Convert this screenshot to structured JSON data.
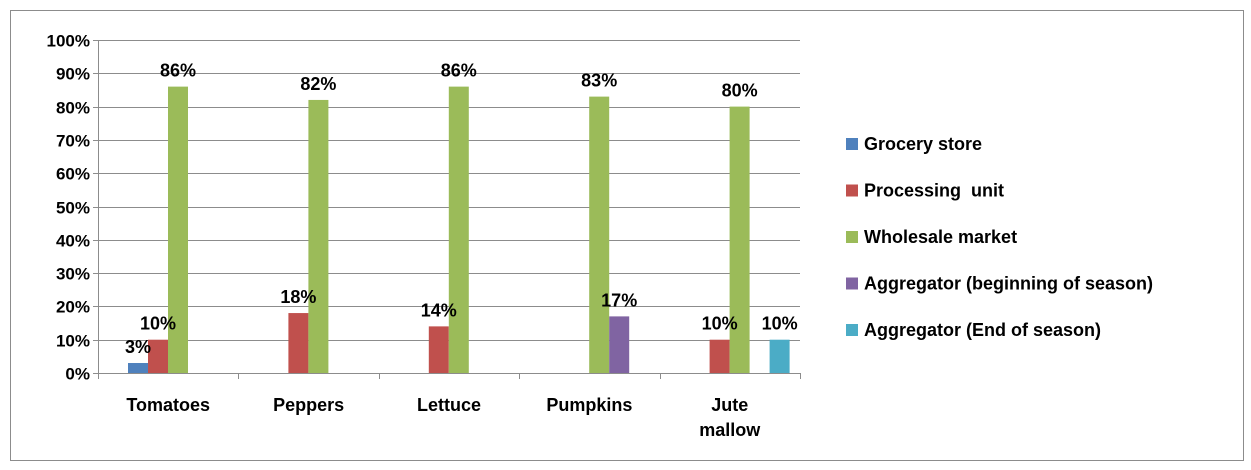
{
  "chart_data": {
    "type": "bar",
    "categories": [
      [
        "Tomatoes"
      ],
      [
        "Peppers"
      ],
      [
        "Lettuce"
      ],
      [
        "Pumpkins"
      ],
      [
        "Jute",
        "mallow"
      ]
    ],
    "series": [
      {
        "name": "Grocery store",
        "color": "#4F81BD",
        "values": [
          3,
          null,
          null,
          null,
          null
        ]
      },
      {
        "name": "Processing  unit",
        "color": "#C0504D",
        "values": [
          10,
          18,
          14,
          null,
          10
        ]
      },
      {
        "name": "Wholesale market",
        "color": "#9BBB59",
        "values": [
          86,
          82,
          86,
          83,
          80
        ]
      },
      {
        "name": "Aggregator (beginning of season)",
        "color": "#8064A2",
        "values": [
          null,
          null,
          null,
          17,
          null
        ]
      },
      {
        "name": "Aggregator (End of season)",
        "color": "#4BACC6",
        "values": [
          null,
          null,
          null,
          null,
          10
        ]
      }
    ],
    "y_ticks": [
      "0%",
      "10%",
      "20%",
      "30%",
      "40%",
      "50%",
      "60%",
      "70%",
      "80%",
      "90%",
      "100%"
    ],
    "ylim": [
      0,
      100
    ],
    "y_unit": "%",
    "grid": true,
    "legend_position": "right"
  }
}
